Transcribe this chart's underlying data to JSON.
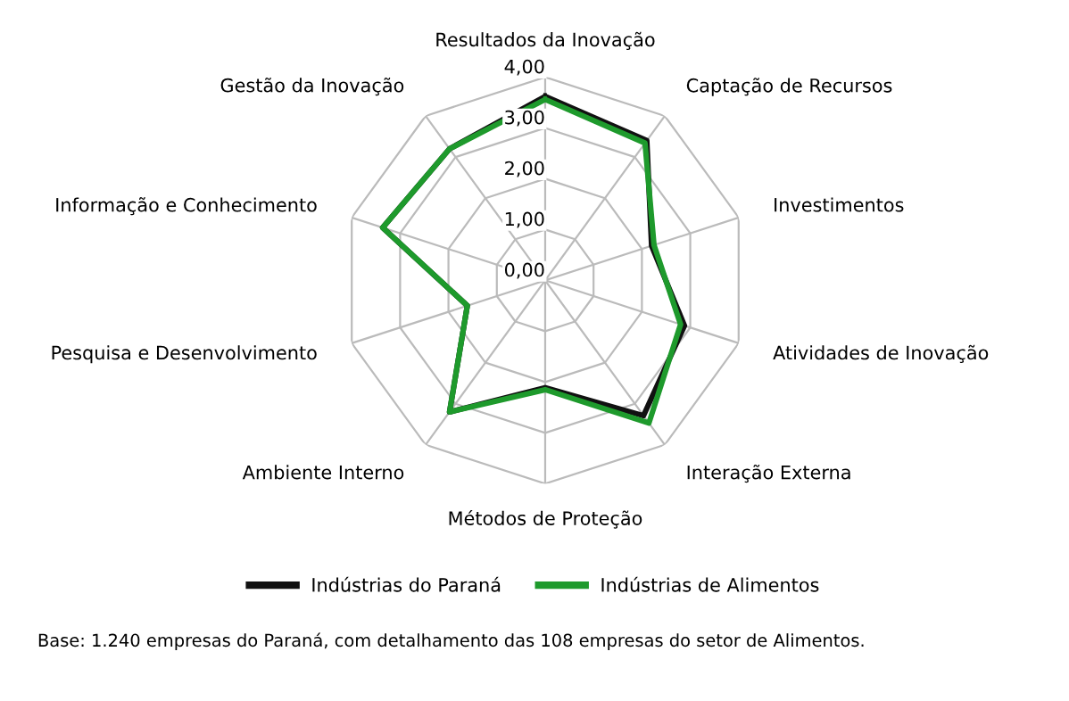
{
  "chart_data": {
    "type": "radar",
    "categories": [
      "Resultados da Inovação",
      "Captação de Recursos",
      "Investimentos",
      "Atividades de Inovação",
      "Interação Externa",
      "Métodos de Proteção",
      "Ambiente Interno",
      "Pesquisa e Desenvolvimento",
      "Informação e Conhecimento",
      "Gestão da Inovação"
    ],
    "series": [
      {
        "name": "Indústrias do Paraná",
        "color": "#111111",
        "values": [
          3.62,
          3.4,
          2.2,
          2.88,
          3.29,
          2.11,
          3.2,
          1.61,
          3.36,
          3.2
        ]
      },
      {
        "name": "Indústrias de Alimentos",
        "color": "#1e9a2c",
        "values": [
          3.56,
          3.34,
          2.25,
          2.8,
          3.47,
          2.15,
          3.2,
          1.61,
          3.36,
          3.2
        ]
      }
    ],
    "ylim": [
      0,
      4
    ],
    "yticks": [
      {
        "value": 0,
        "label": "0,00"
      },
      {
        "value": 1,
        "label": "1,00"
      },
      {
        "value": 2,
        "label": "2,00"
      },
      {
        "value": 3,
        "label": "3,00"
      },
      {
        "value": 4,
        "label": "4,00"
      }
    ],
    "grid": true,
    "legend": "bottom",
    "marker": "none",
    "line_style": "solid",
    "annotations": [
      "Base: 1.240 empresas do Paraná, com detalhamento das 108 empresas do setor de Alimentos."
    ]
  }
}
